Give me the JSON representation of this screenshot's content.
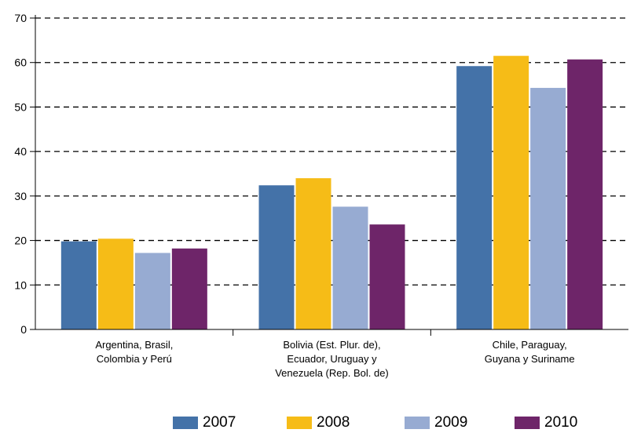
{
  "chart_data": {
    "type": "bar",
    "categories": [
      [
        "Argentina, Brasil,",
        "Colombia y Perú"
      ],
      [
        "Bolivia (Est. Plur. de),",
        "Ecuador, Uruguay y",
        "Venezuela (Rep. Bol. de)"
      ],
      [
        "Chile, Paraguay,",
        "Guyana y Suriname"
      ]
    ],
    "series": [
      {
        "name": "2007",
        "color": "#4472a8",
        "values": [
          19.8,
          32.4,
          59.2
        ]
      },
      {
        "name": "2008",
        "color": "#f6bc17",
        "values": [
          20.4,
          34.0,
          61.5
        ]
      },
      {
        "name": "2009",
        "color": "#97abd2",
        "values": [
          17.2,
          27.6,
          54.3
        ]
      },
      {
        "name": "2010",
        "color": "#6e2569",
        "values": [
          18.2,
          23.6,
          60.7
        ]
      }
    ],
    "y_ticks": [
      "0",
      "10",
      "20",
      "30",
      "40",
      "50",
      "60",
      "70"
    ],
    "ylim": [
      0,
      70
    ],
    "grid": "dashed horizontal",
    "legend_position": "bottom"
  }
}
